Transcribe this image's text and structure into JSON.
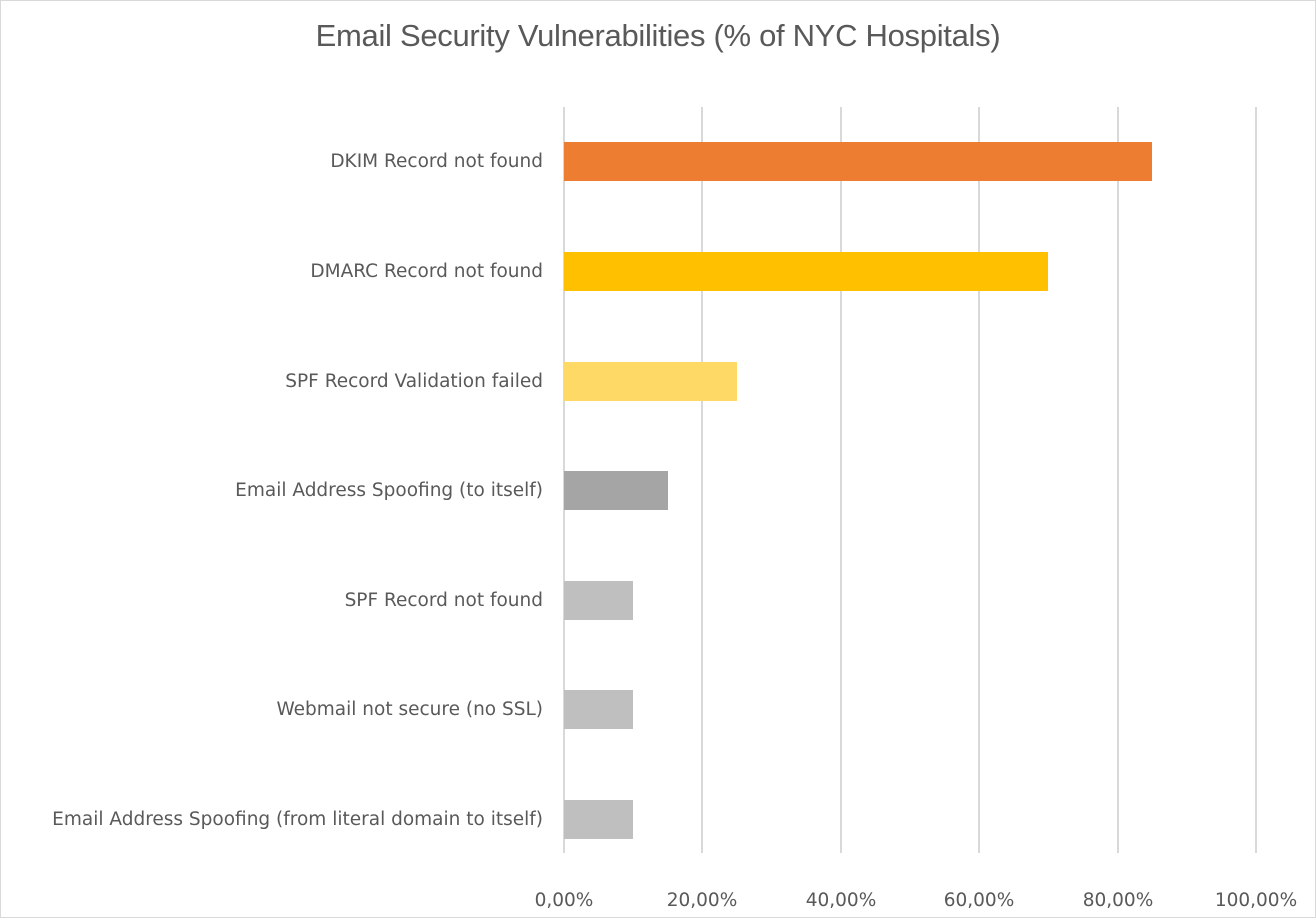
{
  "chart_data": {
    "type": "bar",
    "orientation": "horizontal",
    "title": "Email Security Vulnerabilities (% of NYC Hospitals)",
    "xlabel": "",
    "ylabel": "",
    "xlim": [
      0,
      100
    ],
    "grid": true,
    "legend": null,
    "x_ticks": [
      "0,00%",
      "20,00%",
      "40,00%",
      "60,00%",
      "80,00%",
      "100,00%"
    ],
    "categories": [
      "DKIM Record not found",
      "DMARC Record not found",
      "SPF Record Validation failed",
      "Email Address Spoofing (to itself)",
      "SPF Record not found",
      "Webmail not secure (no SSL)",
      "Email Address Spoofing (from literal domain to itself)"
    ],
    "values": [
      85,
      70,
      25,
      15,
      10,
      10,
      10
    ],
    "colors": [
      "#ed7d31",
      "#ffc000",
      "#ffd966",
      "#a5a5a5",
      "#bfbfbf",
      "#bfbfbf",
      "#bfbfbf"
    ]
  },
  "chart": {
    "title": "Email Security Vulnerabilities (% of NYC Hospitals)",
    "ticks": [
      "0,00%",
      "20,00%",
      "40,00%",
      "60,00%",
      "80,00%",
      "100,00%"
    ],
    "rows": [
      {
        "label": "DKIM Record not found",
        "value": 85,
        "color": "#ed7d31"
      },
      {
        "label": "DMARC Record not found",
        "value": 70,
        "color": "#ffc000"
      },
      {
        "label": "SPF Record Validation failed",
        "value": 25,
        "color": "#ffd966"
      },
      {
        "label": "Email Address Spoofing (to itself)",
        "value": 15,
        "color": "#a5a5a5"
      },
      {
        "label": "SPF Record not found",
        "value": 10,
        "color": "#bfbfbf"
      },
      {
        "label": "Webmail not secure (no SSL)",
        "value": 10,
        "color": "#bfbfbf"
      },
      {
        "label": "Email Address Spoofing (from literal domain to itself)",
        "value": 10,
        "color": "#bfbfbf"
      }
    ]
  }
}
